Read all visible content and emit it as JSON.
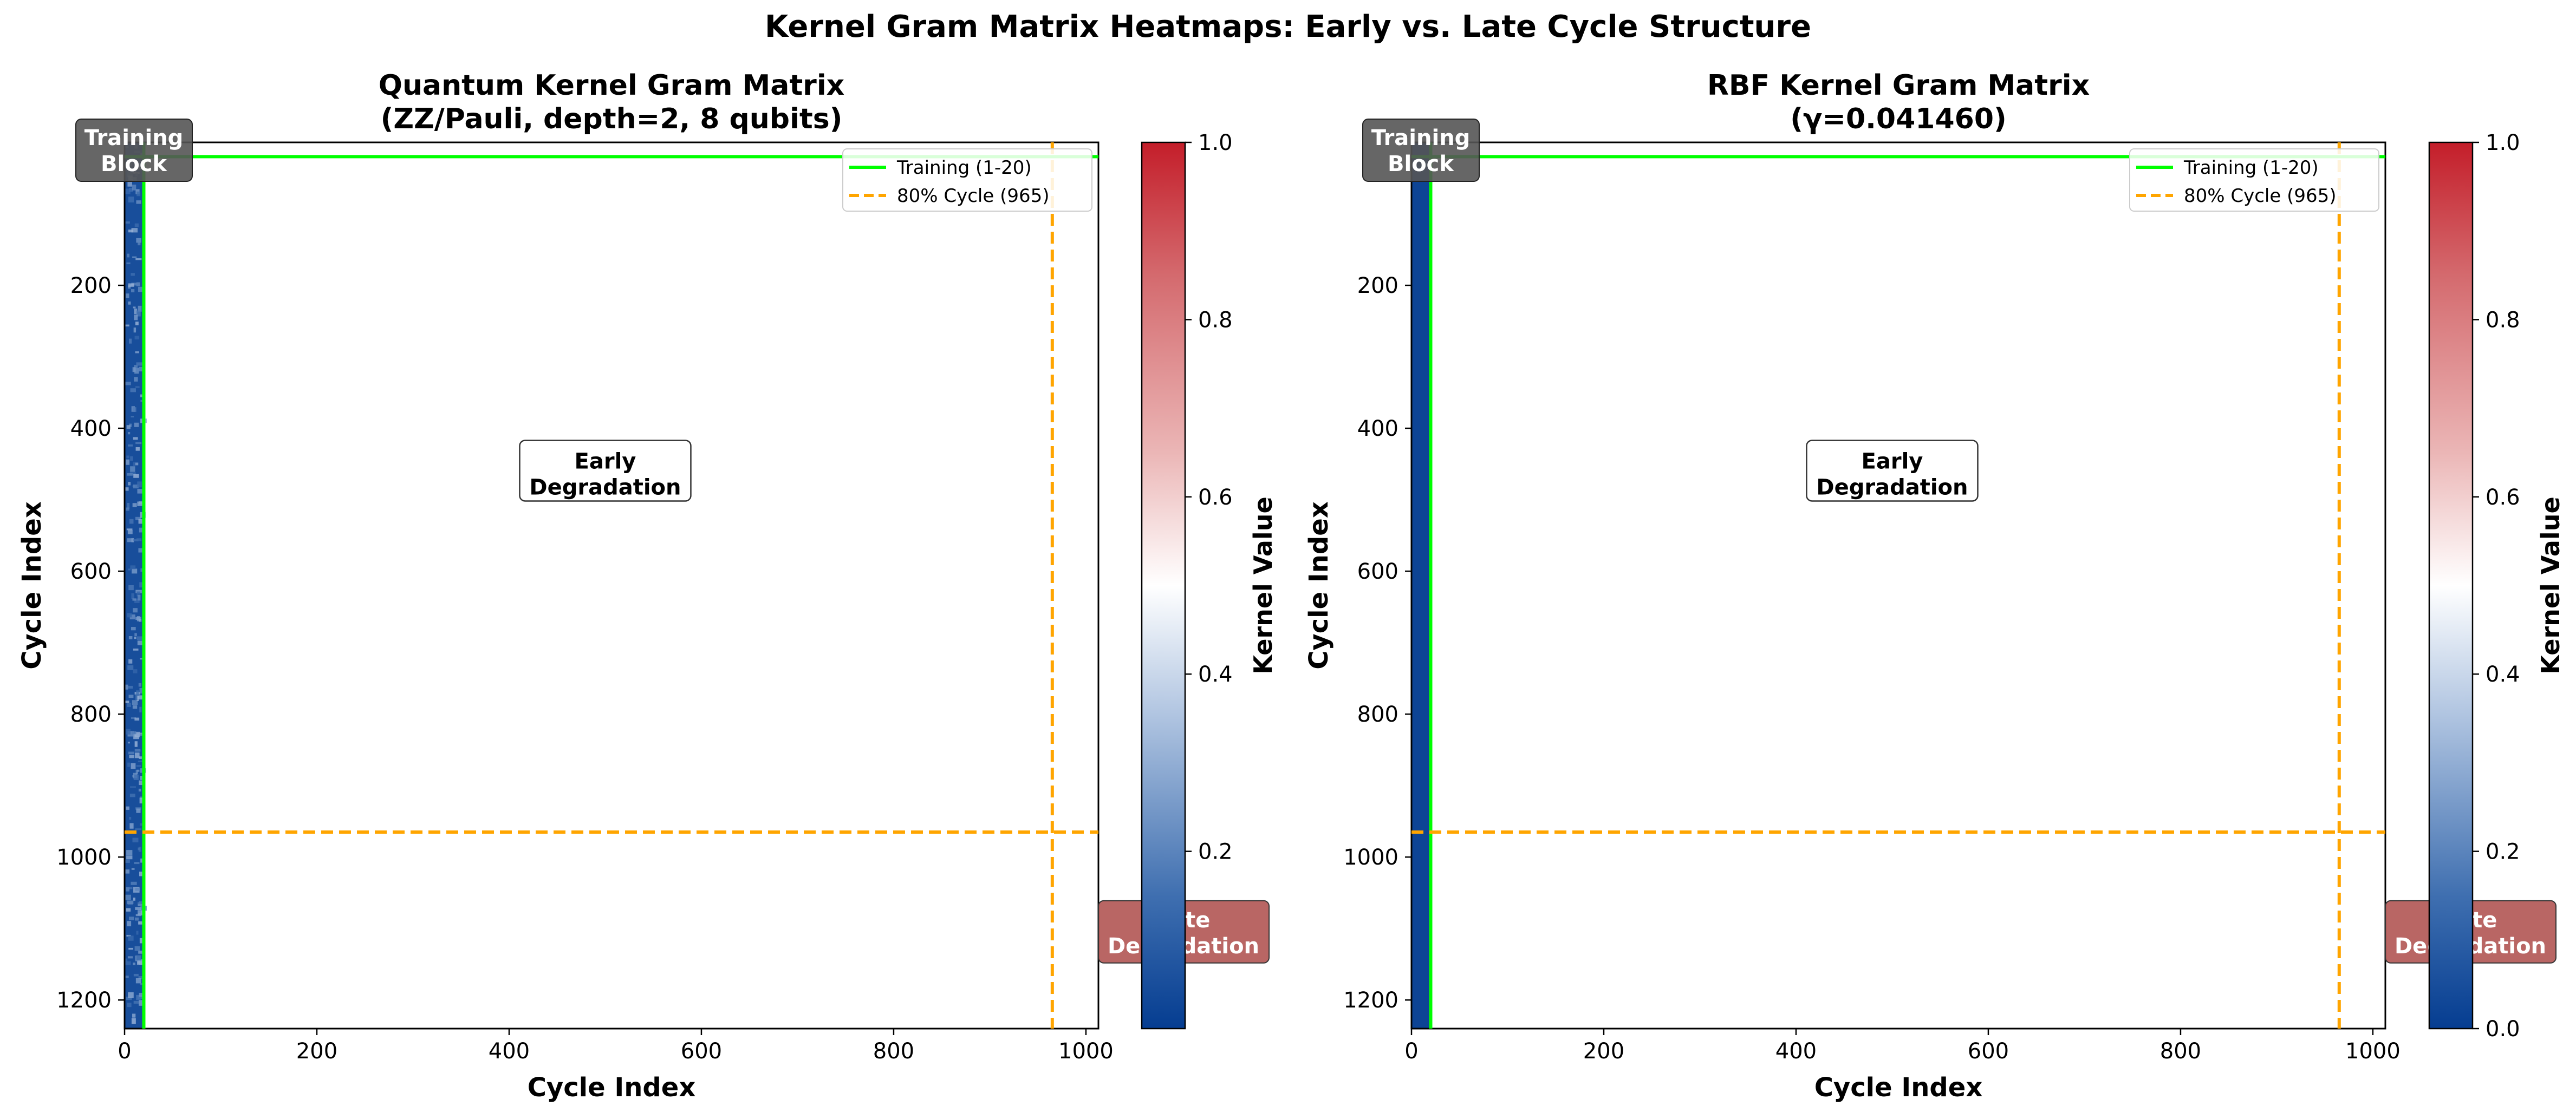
{
  "suptitle": "Kernel Gram Matrix Heatmaps: Early vs. Late Cycle Structure",
  "colors": {
    "training_line": "#00ff00",
    "cycle80_line": "#ffa500",
    "cmap_low": "#053d91",
    "cmap_mid": "#ffffff",
    "cmap_high": "#c41e2a",
    "training_box": "#555555",
    "late_box": "#a94442"
  },
  "chart_data": [
    {
      "type": "heatmap",
      "title_line1": "Quantum Kernel Gram Matrix",
      "title_line2": "(ZZ/Pauli, depth=2, 8 qubits)",
      "xlabel": "Cycle Index",
      "ylabel": "Cycle Index",
      "xlim": [
        0,
        1013
      ],
      "ylim": [
        1240,
        0
      ],
      "x_ticks": [
        0,
        200,
        400,
        600,
        800,
        1000
      ],
      "y_ticks": [
        200,
        400,
        600,
        800,
        1000,
        1200
      ],
      "filled_columns": [
        0,
        20
      ],
      "filled_value": 0.05,
      "fill_texture": true,
      "training_end": 20,
      "cycle80": 965,
      "legend": [
        "Training (1-20)",
        "80% Cycle (965)"
      ],
      "annotations": {
        "training": [
          "Training",
          "Block"
        ],
        "early": [
          "Early",
          "Degradation"
        ],
        "late": [
          "Late",
          "Degradation"
        ]
      },
      "colorbar": {
        "label": "Kernel Value",
        "range": [
          0.0,
          1.0
        ],
        "ticks": [
          "0.2",
          "0.4",
          "0.6",
          "0.8",
          "1.0"
        ]
      }
    },
    {
      "type": "heatmap",
      "title_line1": "RBF Kernel Gram Matrix",
      "title_line2": "(γ=0.041460)",
      "xlabel": "Cycle Index",
      "ylabel": "Cycle Index",
      "xlim": [
        0,
        1013
      ],
      "ylim": [
        1240,
        0
      ],
      "x_ticks": [
        0,
        200,
        400,
        600,
        800,
        1000
      ],
      "y_ticks": [
        200,
        400,
        600,
        800,
        1000,
        1200
      ],
      "filled_columns": [
        0,
        20
      ],
      "filled_value": 0.02,
      "fill_texture": false,
      "training_end": 20,
      "cycle80": 965,
      "legend": [
        "Training (1-20)",
        "80% Cycle (965)"
      ],
      "annotations": {
        "training": [
          "Training",
          "Block"
        ],
        "early": [
          "Early",
          "Degradation"
        ],
        "late": [
          "Late",
          "Degradation"
        ]
      },
      "colorbar": {
        "label": "Kernel Value",
        "range": [
          0.0,
          1.0
        ],
        "ticks": [
          "0.0",
          "0.2",
          "0.4",
          "0.6",
          "0.8",
          "1.0"
        ]
      }
    }
  ]
}
